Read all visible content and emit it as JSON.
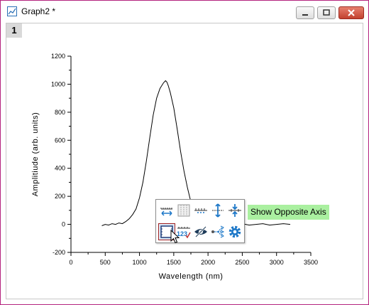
{
  "window": {
    "title": "Graph2 *",
    "page_tab": "1"
  },
  "chart_data": {
    "type": "line",
    "title": "",
    "xlabel": "Wavelength (nm)",
    "ylabel": "Amplitiude (arb. units)",
    "xlim": [
      0,
      3500
    ],
    "ylim": [
      -200,
      1200
    ],
    "x_ticks": [
      0,
      500,
      1000,
      1500,
      2000,
      2500,
      3000,
      3500
    ],
    "y_ticks": [
      -200,
      0,
      200,
      400,
      600,
      800,
      1000,
      1200
    ],
    "series": [
      {
        "x": [
          450,
          500,
          550,
          600,
          650,
          700,
          750,
          800,
          850,
          900,
          950,
          1000,
          1050,
          1100,
          1150,
          1200,
          1250,
          1300,
          1350,
          1380,
          1400,
          1420,
          1450,
          1500,
          1550,
          1600,
          1650,
          1700,
          1750,
          1800,
          1850,
          1900,
          1950,
          2000,
          2100,
          2200,
          2300,
          2400,
          2500,
          2600,
          2700,
          2800,
          2900,
          3000,
          3100,
          3200
        ],
        "y": [
          -10,
          0,
          -5,
          5,
          0,
          10,
          5,
          20,
          40,
          70,
          110,
          190,
          300,
          450,
          620,
          780,
          900,
          970,
          1010,
          1025,
          1015,
          990,
          940,
          830,
          680,
          520,
          380,
          260,
          160,
          90,
          40,
          20,
          10,
          5,
          0,
          -5,
          5,
          0,
          5,
          -5,
          0,
          5,
          -5,
          0,
          5,
          0
        ]
      }
    ]
  },
  "mini_toolbar": {
    "icons_row1": [
      "horizontal-axis-icon",
      "grid-lines-icon",
      "axis-ticks-icon",
      "axis-scale-vertical-icon",
      "axis-scale-both-icon"
    ],
    "icons_row2": [
      "opposite-axis-icon",
      "tick-labels-icon",
      "show-hide-icon",
      "axis-break-icon",
      "settings-icon"
    ],
    "tooltip": "Show Opposite Axis"
  },
  "colors": {
    "accent": "#1e78c8",
    "tooltip_bg": "#aaf0a0",
    "window_border": "#b4237e"
  }
}
